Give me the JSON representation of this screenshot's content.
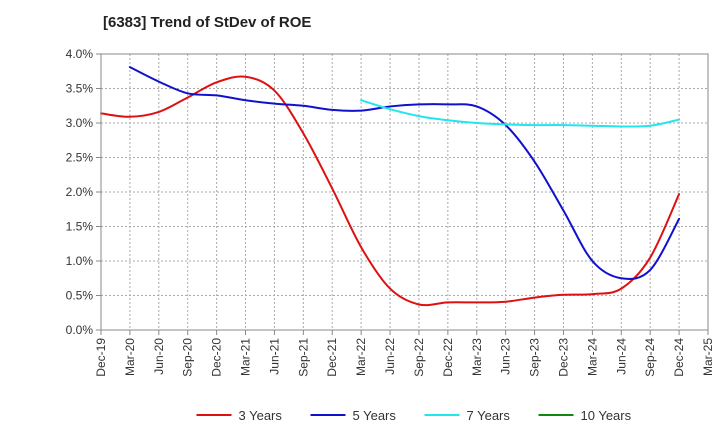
{
  "chart_data": {
    "type": "line",
    "title": "[6383]  Trend of StDev of ROE",
    "xlabel": "",
    "ylabel": "",
    "ylim": [
      0,
      4.0
    ],
    "yticks": [
      "0.0%",
      "0.5%",
      "1.0%",
      "1.5%",
      "2.0%",
      "2.5%",
      "3.0%",
      "3.5%",
      "4.0%"
    ],
    "x_categories": [
      "Dec-19",
      "Mar-20",
      "Jun-20",
      "Sep-20",
      "Dec-20",
      "Mar-21",
      "Jun-21",
      "Sep-21",
      "Dec-21",
      "Mar-22",
      "Jun-22",
      "Sep-22",
      "Dec-22",
      "Mar-23",
      "Jun-23",
      "Sep-23",
      "Dec-23",
      "Mar-24",
      "Jun-24",
      "Sep-24",
      "Dec-24",
      "Mar-25"
    ],
    "grid": true,
    "legend_position": "bottom",
    "series": [
      {
        "name": "3 Years",
        "color": "#dd1111",
        "values": [
          3.14,
          3.09,
          3.16,
          3.37,
          3.59,
          3.67,
          3.47,
          2.85,
          2.05,
          1.2,
          0.6,
          0.37,
          0.4,
          0.4,
          0.41,
          0.47,
          0.51,
          0.52,
          0.6,
          1.05,
          1.97,
          null
        ]
      },
      {
        "name": "5 Years",
        "color": "#1111cc",
        "values": [
          null,
          3.81,
          3.6,
          3.43,
          3.4,
          3.33,
          3.28,
          3.25,
          3.19,
          3.18,
          3.24,
          3.27,
          3.27,
          3.24,
          2.97,
          2.44,
          1.73,
          1.0,
          0.75,
          0.87,
          1.61,
          null
        ]
      },
      {
        "name": "7 Years",
        "color": "#22e5ee",
        "values": [
          null,
          null,
          null,
          null,
          null,
          null,
          null,
          null,
          null,
          3.33,
          3.2,
          3.1,
          3.04,
          3.0,
          2.98,
          2.97,
          2.97,
          2.96,
          2.95,
          2.96,
          3.05,
          null
        ]
      },
      {
        "name": "10 Years",
        "color": "#118811",
        "values": [
          null,
          null,
          null,
          null,
          null,
          null,
          null,
          null,
          null,
          null,
          null,
          null,
          null,
          null,
          null,
          null,
          null,
          null,
          null,
          null,
          null,
          null
        ]
      }
    ]
  }
}
